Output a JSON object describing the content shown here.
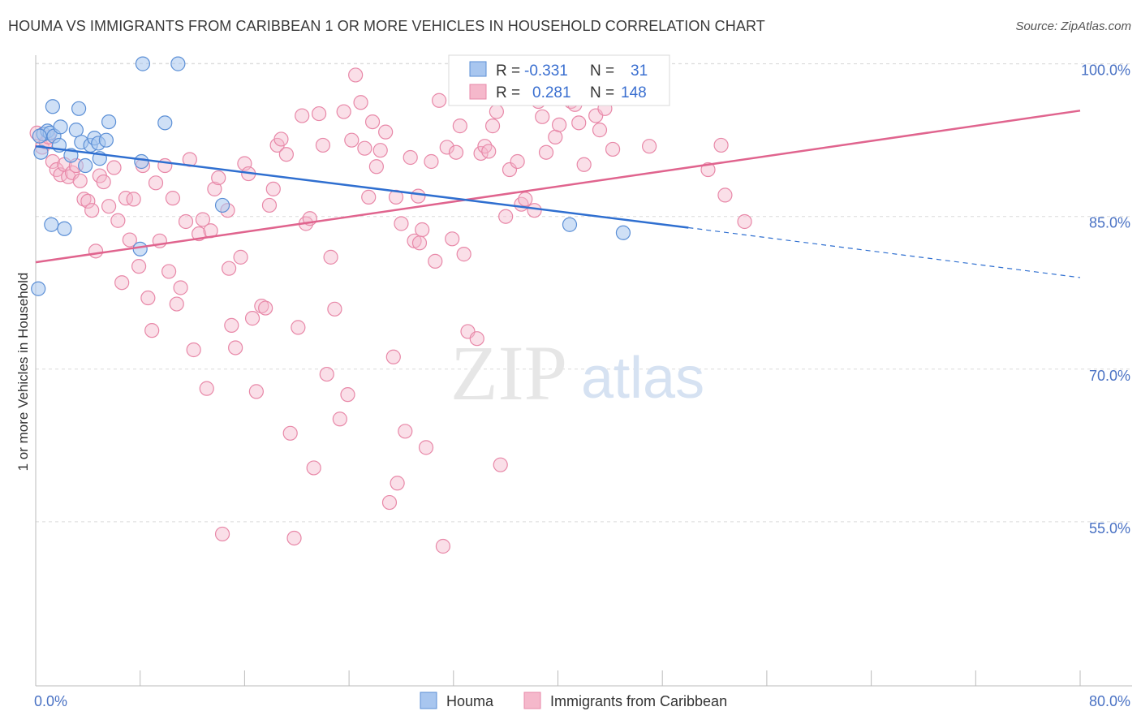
{
  "title": "HOUMA VS IMMIGRANTS FROM CARIBBEAN 1 OR MORE VEHICLES IN HOUSEHOLD CORRELATION CHART",
  "source": "Source: ZipAtlas.com",
  "watermark": {
    "zip": "ZIP",
    "atlas": "atlas"
  },
  "colors": {
    "blue_fill": "#a8c6ef",
    "blue_stroke": "#5b8fd6",
    "blue_line": "#2f6fd0",
    "pink_fill": "#f5b8cb",
    "pink_stroke": "#e888a8",
    "pink_line": "#e0648e",
    "axis_text": "#4a72c4",
    "grid": "#dcdcdc"
  },
  "stats": {
    "r_label": "R =",
    "n_label": "N =",
    "rows": [
      {
        "series": "Houma",
        "r": "-0.331",
        "n": "31"
      },
      {
        "series": "Immigrants from Caribbean",
        "r": "0.281",
        "n": "148"
      }
    ]
  },
  "legend": {
    "items": [
      "Houma",
      "Immigrants from Caribbean"
    ]
  },
  "chart_data": {
    "type": "scatter",
    "xlabel": "",
    "ylabel": "1 or more Vehicles in Household",
    "xlim": [
      0,
      80
    ],
    "ylim": [
      40,
      103
    ],
    "x_tick_labels": {
      "0": "0.0%",
      "80": "80.0%"
    },
    "y_ticks": [
      55,
      70,
      85,
      100
    ],
    "y_tick_labels": [
      "55.0%",
      "70.0%",
      "85.0%",
      "100.0%"
    ],
    "grid": true,
    "legend_position": "bottom-center",
    "series": [
      {
        "name": "Houma",
        "trend": {
          "x0": 0,
          "y0": 91.9,
          "x1": 50,
          "y1": 83.9,
          "dash_to_x": 80,
          "dash_to_y": 79.0
        },
        "points": [
          [
            0.2,
            77.9
          ],
          [
            0.4,
            91.3
          ],
          [
            0.6,
            93.1
          ],
          [
            0.9,
            93.4
          ],
          [
            1.1,
            93.2
          ],
          [
            1.3,
            95.8
          ],
          [
            1.4,
            92.9
          ],
          [
            1.8,
            92.0
          ],
          [
            1.9,
            93.8
          ],
          [
            1.2,
            84.2
          ],
          [
            2.2,
            83.8
          ],
          [
            2.7,
            91.0
          ],
          [
            3.1,
            93.5
          ],
          [
            3.3,
            95.6
          ],
          [
            3.5,
            92.3
          ],
          [
            3.8,
            90.0
          ],
          [
            4.2,
            92.0
          ],
          [
            4.5,
            92.7
          ],
          [
            4.8,
            92.2
          ],
          [
            4.9,
            90.7
          ],
          [
            5.4,
            92.5
          ],
          [
            5.6,
            94.3
          ],
          [
            8.2,
            100.0
          ],
          [
            8.1,
            90.4
          ],
          [
            8.0,
            81.8
          ],
          [
            9.9,
            94.2
          ],
          [
            10.9,
            100.0
          ],
          [
            14.3,
            86.1
          ],
          [
            40.9,
            84.2
          ],
          [
            45.0,
            83.4
          ],
          [
            0.3,
            92.9
          ]
        ]
      },
      {
        "name": "Immigrants from Caribbean",
        "trend": {
          "x0": 0,
          "y0": 80.5,
          "x1": 80,
          "y1": 95.4
        },
        "points": [
          [
            0.1,
            93.2
          ],
          [
            0.5,
            91.8
          ],
          [
            0.8,
            92.3
          ],
          [
            1.0,
            92.8
          ],
          [
            1.3,
            90.4
          ],
          [
            1.6,
            89.6
          ],
          [
            1.9,
            89.1
          ],
          [
            2.2,
            90.1
          ],
          [
            2.5,
            88.9
          ],
          [
            2.8,
            89.3
          ],
          [
            3.1,
            90.0
          ],
          [
            3.4,
            88.5
          ],
          [
            3.7,
            86.7
          ],
          [
            4.0,
            86.5
          ],
          [
            4.3,
            85.6
          ],
          [
            4.6,
            81.6
          ],
          [
            4.9,
            89.0
          ],
          [
            5.2,
            88.4
          ],
          [
            5.6,
            86.0
          ],
          [
            6.0,
            89.8
          ],
          [
            6.3,
            84.6
          ],
          [
            6.6,
            78.5
          ],
          [
            6.9,
            86.8
          ],
          [
            7.2,
            82.7
          ],
          [
            7.5,
            86.7
          ],
          [
            7.9,
            80.1
          ],
          [
            8.2,
            90.0
          ],
          [
            8.6,
            77.0
          ],
          [
            8.9,
            73.8
          ],
          [
            9.2,
            88.3
          ],
          [
            9.5,
            82.6
          ],
          [
            9.9,
            90.0
          ],
          [
            10.2,
            79.6
          ],
          [
            10.5,
            86.8
          ],
          [
            10.8,
            76.4
          ],
          [
            11.1,
            78.0
          ],
          [
            11.5,
            84.5
          ],
          [
            11.8,
            90.6
          ],
          [
            12.1,
            71.9
          ],
          [
            12.5,
            83.3
          ],
          [
            12.8,
            84.7
          ],
          [
            13.1,
            68.1
          ],
          [
            13.4,
            83.6
          ],
          [
            13.7,
            87.7
          ],
          [
            14.0,
            88.8
          ],
          [
            14.3,
            53.8
          ],
          [
            14.7,
            85.6
          ],
          [
            15.0,
            74.3
          ],
          [
            15.3,
            72.1
          ],
          [
            15.7,
            81.0
          ],
          [
            16.0,
            90.2
          ],
          [
            16.3,
            89.2
          ],
          [
            16.6,
            75.0
          ],
          [
            16.9,
            67.8
          ],
          [
            17.3,
            76.2
          ],
          [
            17.6,
            76.0
          ],
          [
            17.9,
            86.1
          ],
          [
            18.2,
            87.7
          ],
          [
            18.5,
            92.0
          ],
          [
            18.8,
            92.6
          ],
          [
            19.2,
            91.1
          ],
          [
            19.5,
            63.7
          ],
          [
            19.8,
            53.4
          ],
          [
            20.1,
            74.1
          ],
          [
            20.4,
            94.9
          ],
          [
            20.7,
            84.3
          ],
          [
            21.0,
            84.8
          ],
          [
            21.3,
            60.3
          ],
          [
            21.7,
            95.1
          ],
          [
            22.0,
            92.0
          ],
          [
            22.3,
            69.5
          ],
          [
            22.6,
            81.0
          ],
          [
            22.9,
            75.9
          ],
          [
            23.3,
            65.1
          ],
          [
            23.6,
            95.3
          ],
          [
            23.9,
            67.5
          ],
          [
            24.2,
            92.5
          ],
          [
            24.5,
            98.9
          ],
          [
            24.9,
            96.2
          ],
          [
            25.2,
            91.7
          ],
          [
            25.5,
            86.9
          ],
          [
            25.8,
            94.3
          ],
          [
            26.1,
            89.9
          ],
          [
            26.4,
            91.5
          ],
          [
            26.8,
            93.3
          ],
          [
            27.1,
            56.9
          ],
          [
            27.4,
            71.2
          ],
          [
            27.7,
            58.8
          ],
          [
            28.0,
            84.3
          ],
          [
            28.3,
            63.9
          ],
          [
            28.7,
            90.8
          ],
          [
            29.0,
            82.6
          ],
          [
            29.3,
            87.0
          ],
          [
            29.6,
            83.7
          ],
          [
            29.9,
            62.3
          ],
          [
            30.3,
            90.4
          ],
          [
            30.6,
            80.6
          ],
          [
            30.9,
            96.4
          ],
          [
            31.2,
            52.6
          ],
          [
            31.5,
            91.8
          ],
          [
            31.9,
            82.8
          ],
          [
            32.2,
            91.3
          ],
          [
            32.5,
            93.9
          ],
          [
            32.8,
            81.3
          ],
          [
            33.1,
            73.7
          ],
          [
            33.4,
            96.6
          ],
          [
            33.8,
            73.0
          ],
          [
            34.1,
            91.2
          ],
          [
            34.4,
            91.9
          ],
          [
            34.7,
            91.4
          ],
          [
            35.0,
            93.9
          ],
          [
            35.3,
            95.3
          ],
          [
            35.6,
            60.6
          ],
          [
            36.0,
            85.0
          ],
          [
            36.3,
            89.6
          ],
          [
            36.6,
            97.2
          ],
          [
            36.9,
            90.4
          ],
          [
            37.2,
            86.2
          ],
          [
            37.5,
            86.7
          ],
          [
            37.9,
            97.8
          ],
          [
            38.2,
            85.6
          ],
          [
            38.5,
            96.3
          ],
          [
            38.8,
            94.8
          ],
          [
            39.1,
            91.3
          ],
          [
            39.4,
            99.0
          ],
          [
            39.8,
            92.8
          ],
          [
            40.1,
            94.0
          ],
          [
            40.4,
            98.0
          ],
          [
            40.7,
            99.6
          ],
          [
            41.0,
            96.3
          ],
          [
            41.3,
            96.0
          ],
          [
            41.6,
            94.2
          ],
          [
            42.0,
            90.1
          ],
          [
            42.3,
            96.6
          ],
          [
            42.6,
            100.0
          ],
          [
            42.9,
            94.9
          ],
          [
            43.2,
            93.5
          ],
          [
            43.6,
            95.6
          ],
          [
            43.9,
            100.0
          ],
          [
            44.2,
            91.6
          ],
          [
            47.0,
            91.9
          ],
          [
            51.5,
            89.6
          ],
          [
            52.5,
            92.0
          ],
          [
            52.8,
            87.1
          ],
          [
            54.3,
            84.5
          ],
          [
            27.6,
            86.9
          ],
          [
            29.4,
            82.4
          ],
          [
            14.8,
            79.9
          ]
        ]
      }
    ]
  }
}
